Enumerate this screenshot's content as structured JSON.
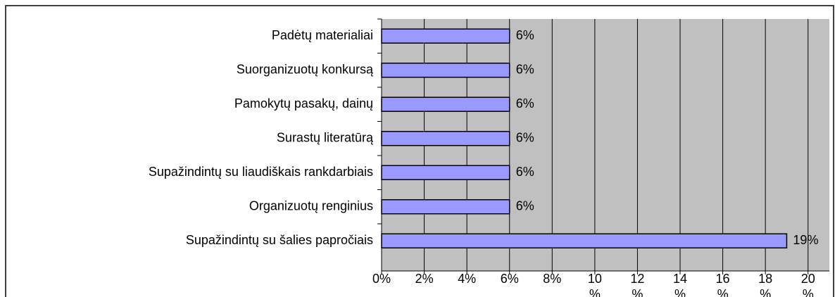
{
  "chart_data": {
    "type": "bar",
    "orientation": "horizontal",
    "categories": [
      "Padėtų materialiai",
      "Suorganizuotų konkursą",
      "Pamokytų pasakų, dainų",
      "Surastų literatūrą",
      "Supažindintų su liaudiškais rankdarbiais",
      "Organizuotų renginius",
      "Supažindintų su šalies papročiais"
    ],
    "values": [
      6,
      6,
      6,
      6,
      6,
      6,
      19
    ],
    "value_labels": [
      "6%",
      "6%",
      "6%",
      "6%",
      "6%",
      "6%",
      "19%"
    ],
    "color": "#9999ff",
    "xlim": [
      0,
      21
    ],
    "xticks": [
      {
        "value": 0,
        "label": "0%"
      },
      {
        "value": 2,
        "label": "2%"
      },
      {
        "value": 4,
        "label": "4%"
      },
      {
        "value": 6,
        "label": "6%"
      },
      {
        "value": 8,
        "label": "8%"
      },
      {
        "value": 10,
        "label": "10 %"
      },
      {
        "value": 12,
        "label": "12 %"
      },
      {
        "value": 14,
        "label": "14 %"
      },
      {
        "value": 16,
        "label": "16 %"
      },
      {
        "value": 18,
        "label": "18 %"
      },
      {
        "value": 20,
        "label": "20 %"
      }
    ],
    "grid": true
  }
}
